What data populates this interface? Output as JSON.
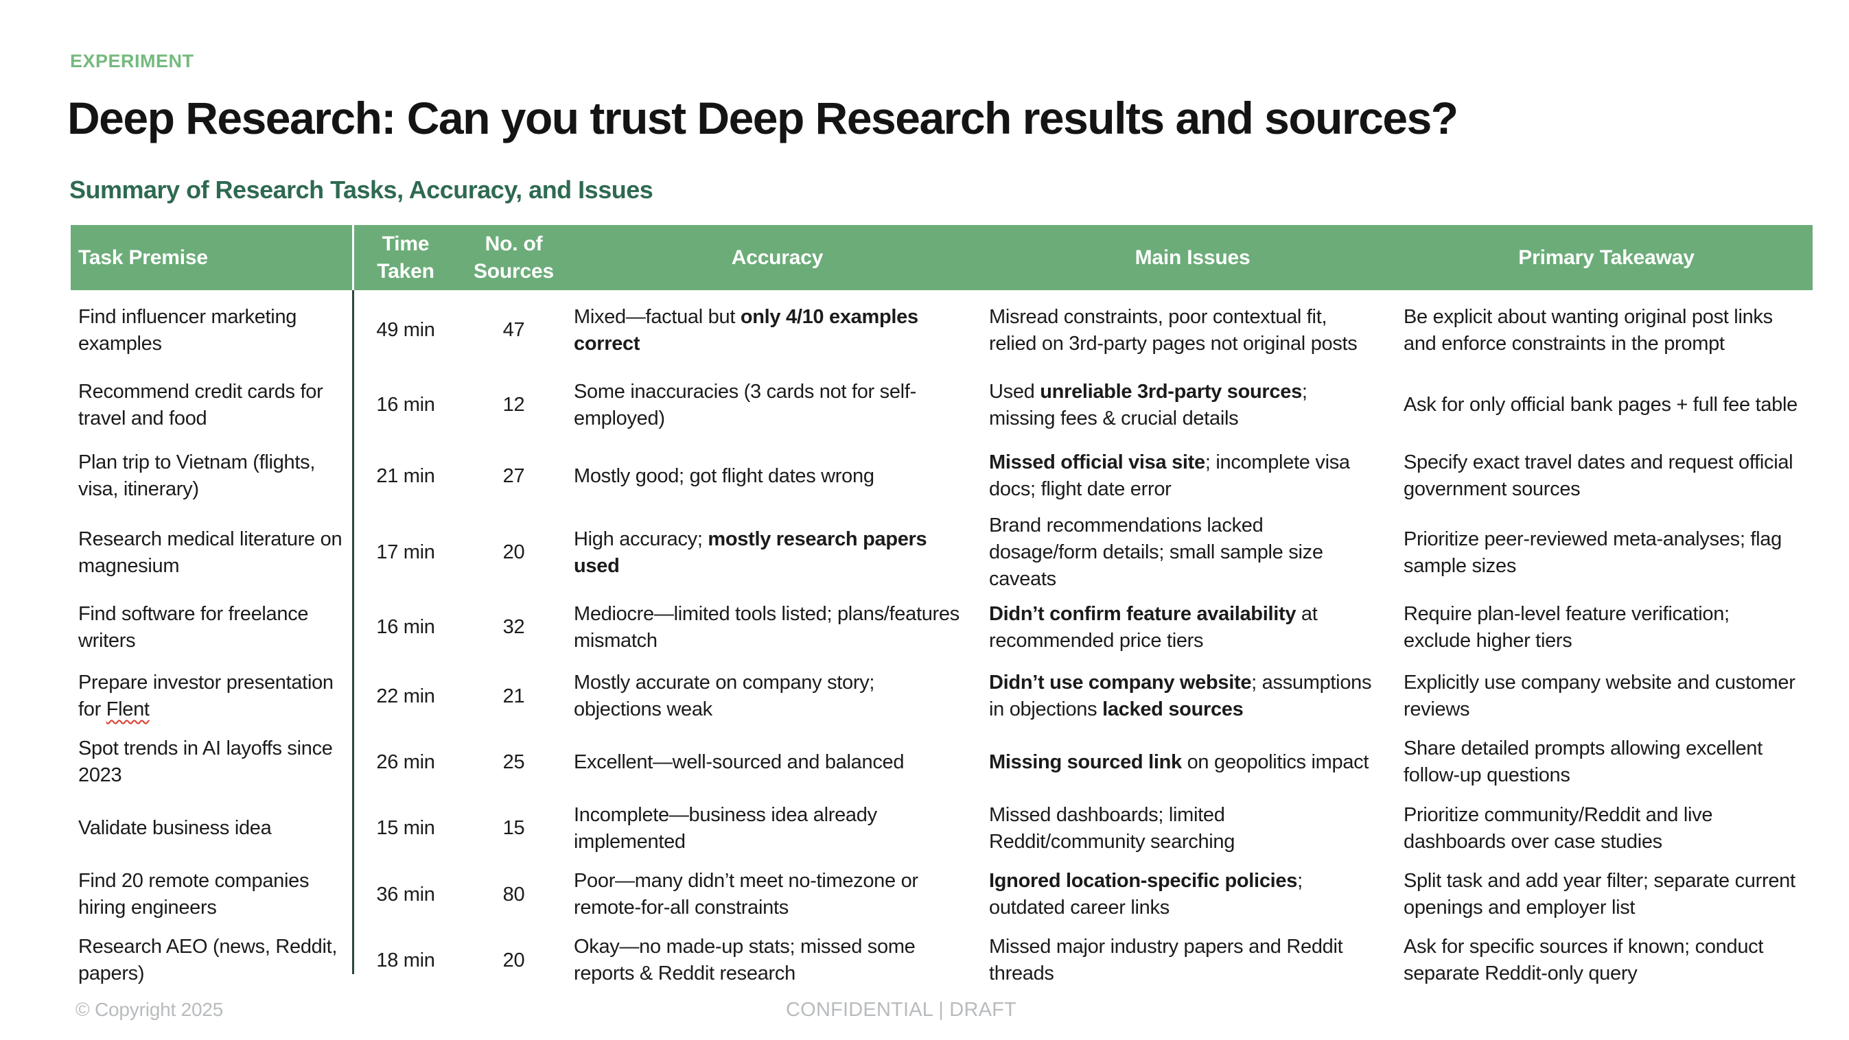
{
  "slide": {
    "eyebrow": "EXPERIMENT",
    "title": "Deep Research: Can you trust Deep Research results and sources?",
    "section_heading": "Summary of Research Tasks, Accuracy, and Issues",
    "footer": {
      "copyright": "© Copyright 2025",
      "confidential": "CONFIDENTIAL | DRAFT"
    }
  },
  "colors": {
    "header_green": "#6cac79",
    "eyebrow_green": "#74ba7e",
    "heading_green": "#2e6a50",
    "divider_dark": "#2a473b",
    "footer_gray": "#b8bbbd",
    "text_black": "#1b1b1b"
  },
  "table": {
    "columns": [
      "Task Premise",
      "Time Taken",
      "No. of Sources",
      "Accuracy",
      "Main Issues",
      "Primary Takeaway"
    ],
    "rows": [
      {
        "premise": [
          {
            "t": "Find influencer marketing examples"
          }
        ],
        "time": "49 min",
        "sources": "47",
        "accuracy": [
          {
            "t": "Mixed—factual but "
          },
          {
            "t": "only 4/10 examples correct",
            "b": true
          }
        ],
        "issues": [
          {
            "t": "Misread constraints, poor contextual fit, relied on 3rd-party pages not original posts"
          }
        ],
        "takeaway": [
          {
            "t": "Be explicit about wanting original post links and enforce constraints in the prompt"
          }
        ]
      },
      {
        "premise": [
          {
            "t": "Recommend credit cards for travel and food"
          }
        ],
        "time": "16 min",
        "sources": "12",
        "accuracy": [
          {
            "t": "Some inaccuracies (3 cards not for self-employed)"
          }
        ],
        "issues": [
          {
            "t": "Used "
          },
          {
            "t": "unreliable 3rd-party sources",
            "b": true
          },
          {
            "t": "; missing fees & crucial details"
          }
        ],
        "takeaway": [
          {
            "t": "Ask for only official bank pages + full fee table"
          }
        ]
      },
      {
        "premise": [
          {
            "t": "Plan trip to Vietnam (flights, visa, itinerary)"
          }
        ],
        "time": "21 min",
        "sources": "27",
        "accuracy": [
          {
            "t": "Mostly good; got flight dates wrong"
          }
        ],
        "issues": [
          {
            "t": "Missed official visa site",
            "b": true
          },
          {
            "t": "; incomplete visa docs; flight date error"
          }
        ],
        "takeaway": [
          {
            "t": "Specify exact travel dates and request official government sources"
          }
        ]
      },
      {
        "premise": [
          {
            "t": "Research medical literature on magnesium"
          }
        ],
        "time": "17 min",
        "sources": "20",
        "accuracy": [
          {
            "t": "High accuracy; "
          },
          {
            "t": "mostly research papers used",
            "b": true
          }
        ],
        "issues": [
          {
            "t": "Brand recommendations lacked dosage/form details; small sample size caveats"
          }
        ],
        "takeaway": [
          {
            "t": "Prioritize peer-reviewed meta-analyses; flag sample sizes"
          }
        ]
      },
      {
        "premise": [
          {
            "t": "Find software for freelance writers"
          }
        ],
        "time": "16 min",
        "sources": "32",
        "accuracy": [
          {
            "t": "Mediocre—limited tools listed; plans/features mismatch"
          }
        ],
        "issues": [
          {
            "t": "Didn’t confirm feature availability",
            "b": true
          },
          {
            "t": " at recommended price tiers"
          }
        ],
        "takeaway": [
          {
            "t": "Require plan-level feature verification; exclude higher tiers"
          }
        ]
      },
      {
        "premise": [
          {
            "t": "Prepare investor presentation for "
          },
          {
            "t": "Flent",
            "w": true
          }
        ],
        "time": "22 min",
        "sources": "21",
        "accuracy": [
          {
            "t": "Mostly accurate on company story; objections weak"
          }
        ],
        "issues": [
          {
            "t": "Didn’t use company website",
            "b": true
          },
          {
            "t": "; assumptions in objections "
          },
          {
            "t": "lacked sources",
            "b": true
          }
        ],
        "takeaway": [
          {
            "t": "Explicitly use company website and customer reviews"
          }
        ]
      },
      {
        "premise": [
          {
            "t": "Spot trends in AI layoffs since 2023"
          }
        ],
        "time": "26 min",
        "sources": "25",
        "accuracy": [
          {
            "t": "Excellent—well-sourced and balanced"
          }
        ],
        "issues": [
          {
            "t": "Missing sourced link",
            "b": true
          },
          {
            "t": " on geopolitics impact"
          }
        ],
        "takeaway": [
          {
            "t": "Share detailed prompts allowing excellent follow-up questions"
          }
        ]
      },
      {
        "premise": [
          {
            "t": "Validate business idea"
          }
        ],
        "time": "15 min",
        "sources": "15",
        "accuracy": [
          {
            "t": "Incomplete—business idea already implemented"
          }
        ],
        "issues": [
          {
            "t": "Missed dashboards; limited Reddit/community searching"
          }
        ],
        "takeaway": [
          {
            "t": "Prioritize community/Reddit and live dashboards over case studies"
          }
        ]
      },
      {
        "premise": [
          {
            "t": "Find 20 remote companies hiring engineers"
          }
        ],
        "time": "36 min",
        "sources": "80",
        "accuracy": [
          {
            "t": "Poor—many didn’t meet no-timezone or remote-for-all constraints"
          }
        ],
        "issues": [
          {
            "t": "Ignored location-specific policies",
            "b": true
          },
          {
            "t": "; outdated career links"
          }
        ],
        "takeaway": [
          {
            "t": "Split task and add year filter; separate current openings and employer list"
          }
        ]
      },
      {
        "premise": [
          {
            "t": "Research AEO (news, Reddit, papers)"
          }
        ],
        "time": "18 min",
        "sources": "20",
        "accuracy": [
          {
            "t": "Okay—no made-up stats; missed some reports & Reddit research"
          }
        ],
        "issues": [
          {
            "t": "Missed major industry papers and Reddit threads"
          }
        ],
        "takeaway": [
          {
            "t": "Ask for specific sources if known; conduct separate Reddit-only query"
          }
        ]
      }
    ]
  }
}
